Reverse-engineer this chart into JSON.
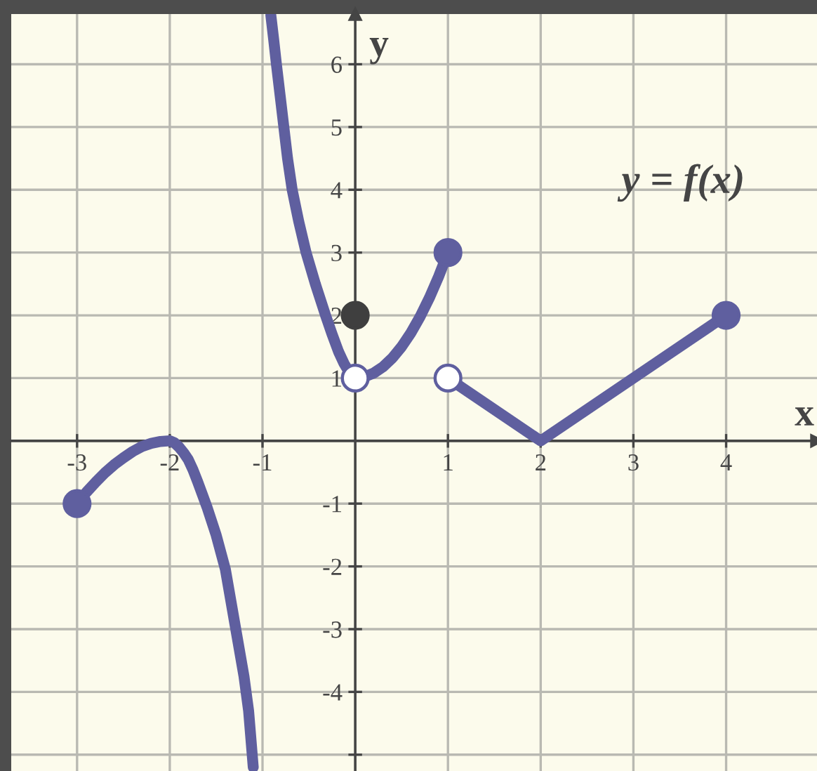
{
  "chart_data": {
    "type": "line",
    "xlabel": "x",
    "ylabel": "y",
    "annotations": [
      "y = f(x)"
    ],
    "series": [
      {
        "color": "#5f5f9f",
        "x": [
          -3,
          -2.9,
          -2.8,
          -2.7,
          -2.6,
          -2.5,
          -2.4,
          -2.3,
          -2.2,
          -2.1,
          -2,
          -1.95,
          -1.9,
          -1.85,
          -1.8,
          -1.75,
          -1.7,
          -1.65,
          -1.6,
          -1.5,
          -1.4,
          -1.3,
          -1.2,
          -1.15,
          -1.1
        ],
        "values": [
          -1,
          -0.82,
          -0.66,
          -0.51,
          -0.38,
          -0.27,
          -0.17,
          -0.09,
          -0.04,
          -0.01,
          0,
          -0.03,
          -0.1,
          -0.19,
          -0.3,
          -0.46,
          -0.65,
          -0.85,
          -1.05,
          -1.5,
          -2.05,
          -2.9,
          -3.75,
          -4.3,
          -5.2
        ]
      },
      {
        "color": "#5f5f9f",
        "x": [
          -0.91,
          -0.88,
          -0.85,
          -0.81,
          -0.77,
          -0.73,
          -0.68,
          -0.61,
          -0.53,
          -0.43,
          -0.32,
          -0.25,
          -0.18,
          -0.12,
          -0.06,
          0,
          0.1,
          0.2,
          0.3,
          0.4,
          0.5,
          0.6,
          0.7,
          0.8,
          0.9,
          1
        ],
        "values": [
          6.78,
          6.4,
          6,
          5.5,
          5,
          4.5,
          4,
          3.5,
          3,
          2.5,
          2,
          1.7,
          1.42,
          1.23,
          1.08,
          1,
          1.02,
          1.08,
          1.18,
          1.32,
          1.5,
          1.72,
          1.98,
          2.28,
          2.62,
          3
        ]
      },
      {
        "color": "#5f5f9f",
        "x": [
          1,
          2,
          4
        ],
        "values": [
          1,
          0,
          2
        ]
      },
      {
        "type": "scatter",
        "marker": "circle",
        "color": "#5f5f9f",
        "x": [
          -3,
          1,
          4
        ],
        "values": [
          -1,
          3,
          2
        ]
      },
      {
        "type": "scatter",
        "marker": "circle",
        "color": "#3f3f3f",
        "x": [
          0
        ],
        "values": [
          2
        ]
      },
      {
        "type": "scatter",
        "marker": "circle",
        "color": "#5f5f9f",
        "colors": [
          "#ffffff",
          "#ffffff"
        ],
        "x": [
          0,
          1
        ],
        "values": [
          1,
          1
        ]
      }
    ],
    "xlim": [
      -3.71,
      4.98
    ],
    "ylim": [
      -5.26,
      6.8
    ],
    "xticks": [
      -3,
      -2,
      -1,
      1,
      2,
      3,
      4
    ],
    "yticks": [
      {
        "value": -5,
        "label": null
      },
      -4,
      -3,
      -2,
      -1,
      1,
      2,
      3,
      4,
      5,
      6
    ],
    "grid": true,
    "marker": "none",
    "line_style": "solid"
  }
}
